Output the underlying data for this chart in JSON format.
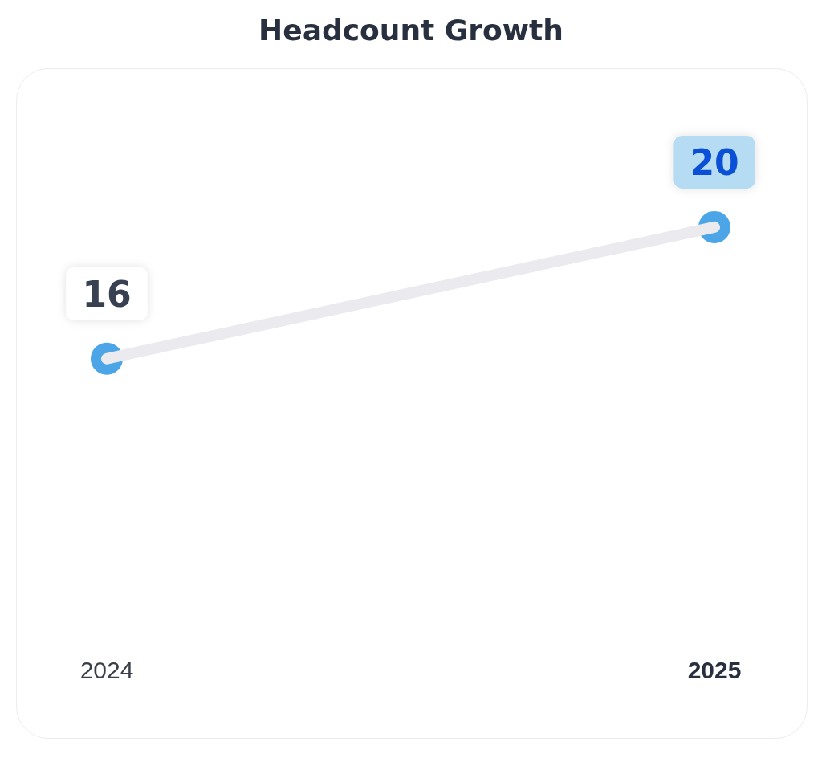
{
  "chart_data": {
    "type": "line",
    "title": "Headcount Growth",
    "categories": [
      "2024",
      "2025"
    ],
    "series": [
      {
        "color": "#1e8fe0",
        "values": [
          16,
          20
        ]
      }
    ],
    "data_labels": true,
    "marker": "circle"
  }
}
